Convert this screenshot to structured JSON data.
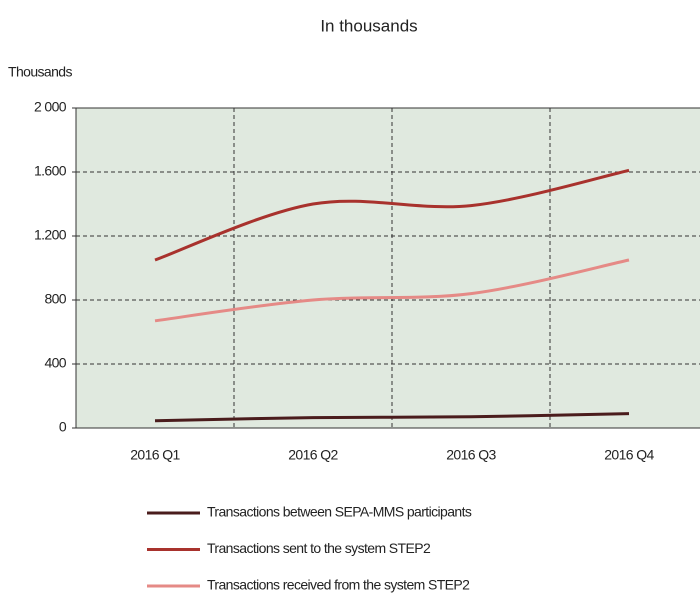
{
  "chart_data": {
    "type": "line",
    "title": "In thousands",
    "ylabel": "Thousands",
    "categories": [
      "2016 Q1",
      "2016 Q2",
      "2016 Q3",
      "2016 Q4"
    ],
    "series": [
      {
        "name": "Transactions between SEPA-MMS participants",
        "color": "#4a1c1c",
        "values": [
          45,
          65,
          70,
          90
        ]
      },
      {
        "name": "Transactions sent to the system STEP2",
        "color": "#a8322d",
        "values": [
          1050,
          1400,
          1390,
          1610
        ]
      },
      {
        "name": "Transactions received from the system STEP2",
        "color": "#e58a86",
        "values": [
          670,
          800,
          840,
          1050
        ]
      }
    ],
    "ylim": [
      0,
      2000
    ],
    "yticks": [
      0,
      400,
      800,
      {
        "value": 1200,
        "label": "1.200"
      },
      {
        "value": 1600,
        "label": "1.600"
      },
      {
        "value": 2000,
        "label": "2 000"
      }
    ],
    "grid": true,
    "legend": "bottom"
  }
}
